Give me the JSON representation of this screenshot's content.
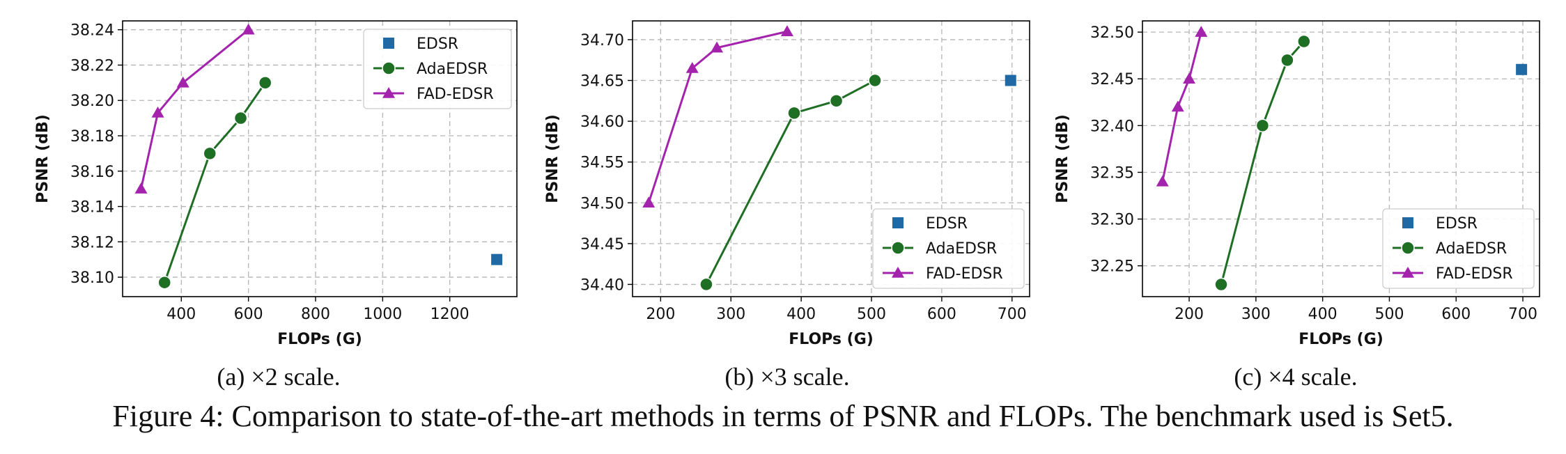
{
  "colors": {
    "EDSR": "#1f6aa5",
    "AdaEDSR": "#1e6e24",
    "FAD-EDSR": "#a323ad"
  },
  "chart_data": [
    {
      "type": "line",
      "xlabel": "FLOPs (G)",
      "ylabel": "PSNR (dB)",
      "xlim": [
        225,
        1400
      ],
      "ylim": [
        38.089,
        38.245
      ],
      "xticks": [
        400,
        600,
        800,
        1000,
        1200
      ],
      "yticks": [
        38.1,
        38.12,
        38.14,
        38.16,
        38.18,
        38.2,
        38.22,
        38.24
      ],
      "ytick_labels": [
        "38.10",
        "38.12",
        "38.14",
        "38.16",
        "38.18",
        "38.20",
        "38.22",
        "38.24"
      ],
      "grid": true,
      "legend_position": "top-right",
      "series": [
        {
          "name": "EDSR",
          "marker": "square",
          "line": false,
          "x": [
            1340
          ],
          "y": [
            38.11
          ]
        },
        {
          "name": "AdaEDSR",
          "marker": "circle",
          "line": true,
          "x": [
            350,
            485,
            577,
            650
          ],
          "y": [
            38.097,
            38.17,
            38.19,
            38.21
          ]
        },
        {
          "name": "FAD-EDSR",
          "marker": "triangle",
          "line": true,
          "x": [
            280,
            330,
            405,
            600
          ],
          "y": [
            38.15,
            38.193,
            38.21,
            38.24
          ]
        }
      ],
      "caption": "(a) ×2 scale."
    },
    {
      "type": "line",
      "xlabel": "FLOPs (G)",
      "ylabel": "PSNR (dB)",
      "xlim": [
        160,
        725
      ],
      "ylim": [
        34.385,
        34.723
      ],
      "xticks": [
        200,
        300,
        400,
        500,
        600,
        700
      ],
      "yticks": [
        34.4,
        34.45,
        34.5,
        34.55,
        34.6,
        34.65,
        34.7
      ],
      "ytick_labels": [
        "34.40",
        "34.45",
        "34.50",
        "34.55",
        "34.60",
        "34.65",
        "34.70"
      ],
      "grid": true,
      "legend_position": "lower-right",
      "series": [
        {
          "name": "EDSR",
          "marker": "square",
          "line": false,
          "x": [
            698
          ],
          "y": [
            34.65
          ]
        },
        {
          "name": "AdaEDSR",
          "marker": "circle",
          "line": true,
          "x": [
            265,
            390,
            450,
            505
          ],
          "y": [
            34.4,
            34.61,
            34.625,
            34.65
          ]
        },
        {
          "name": "FAD-EDSR",
          "marker": "triangle",
          "line": true,
          "x": [
            183,
            245,
            280,
            380
          ],
          "y": [
            34.5,
            34.665,
            34.69,
            34.71
          ]
        }
      ],
      "caption": "(b) ×3 scale."
    },
    {
      "type": "line",
      "xlabel": "FLOPs (G)",
      "ylabel": "PSNR (dB)",
      "xlim": [
        130,
        725
      ],
      "ylim": [
        32.217,
        32.512
      ],
      "xticks": [
        200,
        300,
        400,
        500,
        600,
        700
      ],
      "yticks": [
        32.25,
        32.3,
        32.35,
        32.4,
        32.45,
        32.5
      ],
      "ytick_labels": [
        "32.25",
        "32.30",
        "32.35",
        "32.40",
        "32.45",
        "32.50"
      ],
      "grid": true,
      "legend_position": "lower-right",
      "series": [
        {
          "name": "EDSR",
          "marker": "square",
          "line": false,
          "x": [
            698
          ],
          "y": [
            32.46
          ]
        },
        {
          "name": "AdaEDSR",
          "marker": "circle",
          "line": true,
          "x": [
            248,
            310,
            347,
            372
          ],
          "y": [
            32.23,
            32.4,
            32.47,
            32.49
          ]
        },
        {
          "name": "FAD-EDSR",
          "marker": "triangle",
          "line": true,
          "x": [
            160,
            183,
            200,
            218
          ],
          "y": [
            32.34,
            32.42,
            32.45,
            32.5
          ]
        }
      ],
      "caption": "(c) ×4 scale."
    }
  ],
  "figure_caption": "Figure 4: Comparison to state-of-the-art methods in terms of PSNR and FLOPs. The benchmark used is Set5."
}
